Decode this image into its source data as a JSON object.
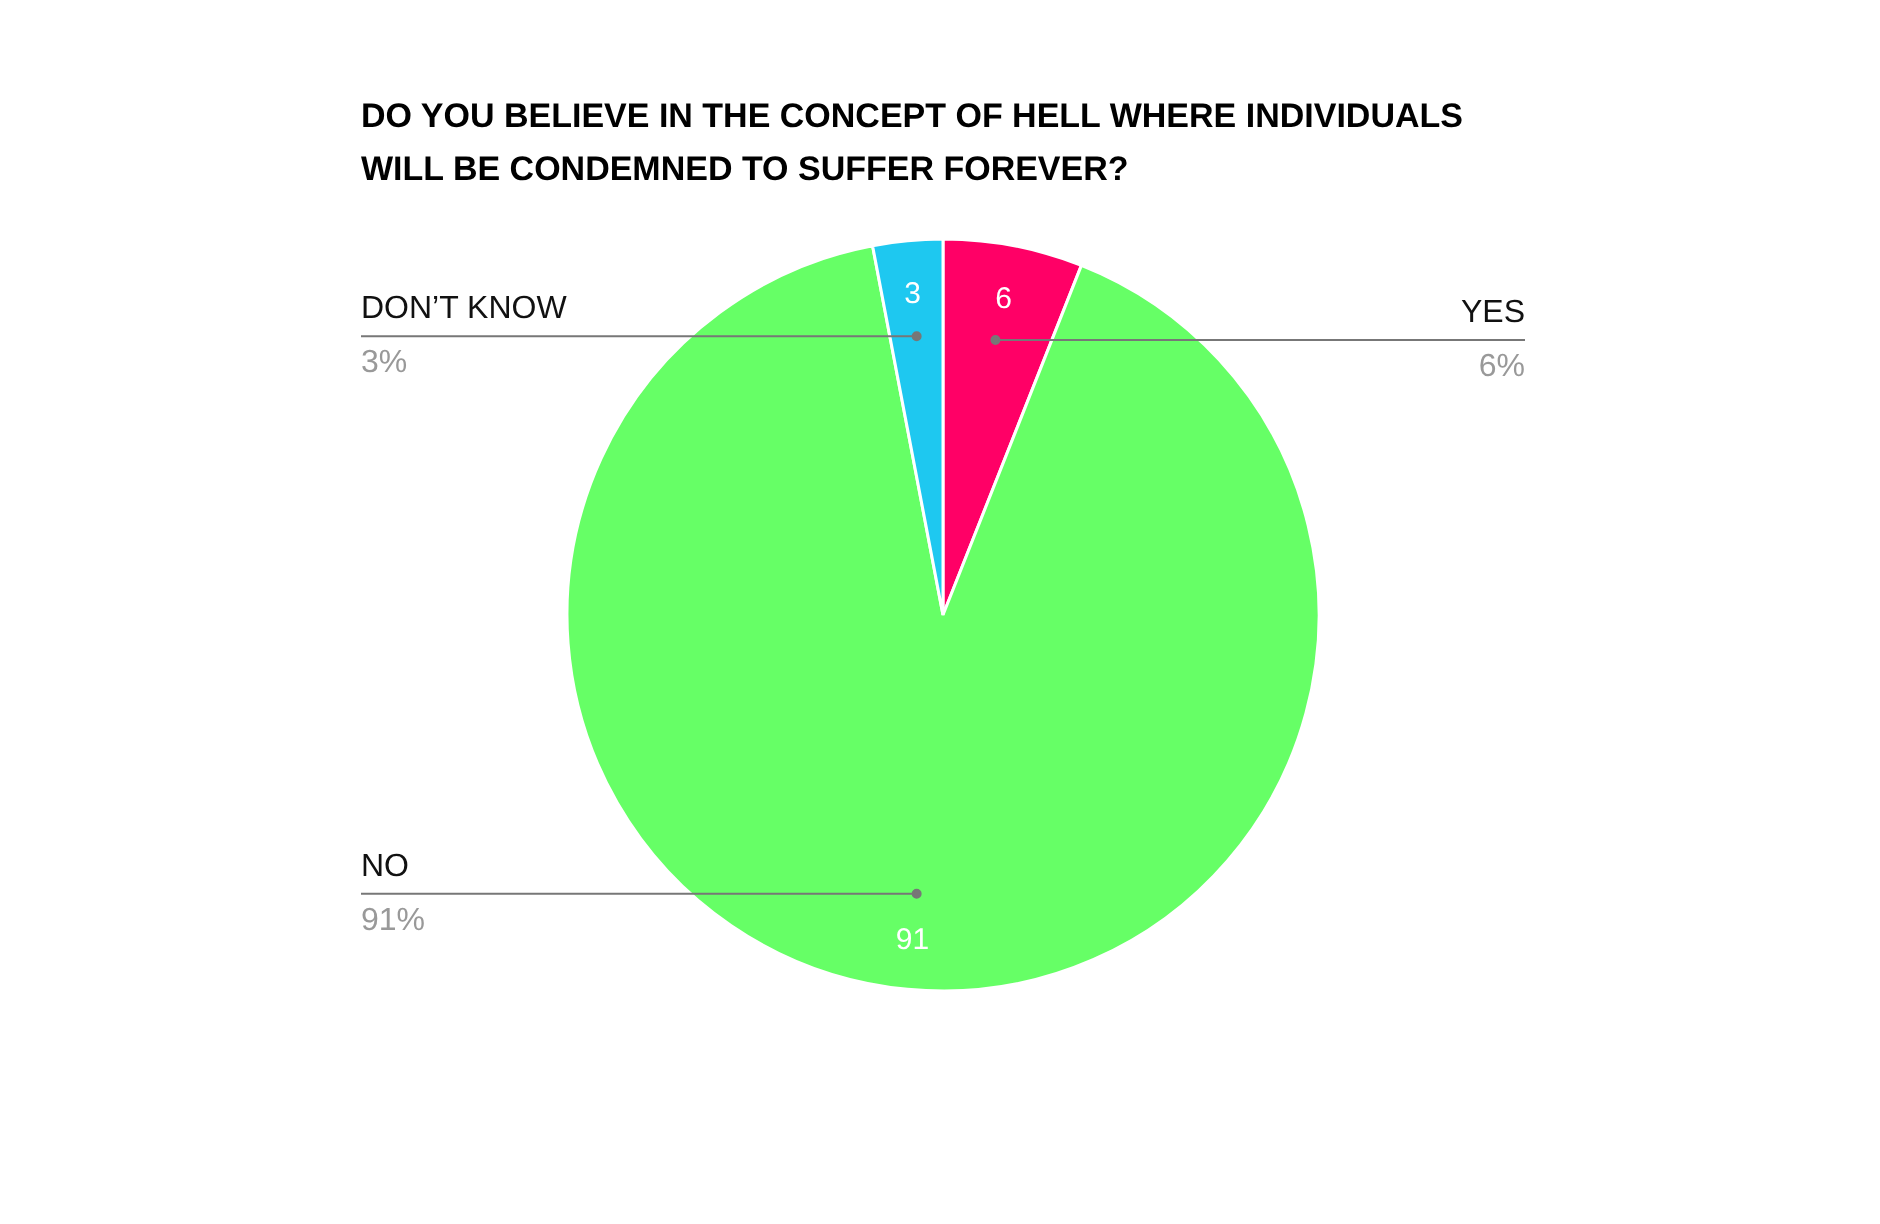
{
  "chart_data": {
    "type": "pie",
    "title": "DO YOU BELIEVE IN THE CONCEPT OF HELL WHERE INDIVIDUALS\nWILL BE CONDEMNED TO SUFFER FOREVER?",
    "categories": [
      "YES",
      "NO",
      "DON’T KNOW"
    ],
    "values": [
      6,
      91,
      3
    ],
    "colors": [
      "#ff0066",
      "#66ff66",
      "#1ec8f0"
    ],
    "value_labels": [
      "6",
      "91",
      "3"
    ],
    "annotations": [
      "6%",
      "91%",
      "3%"
    ]
  }
}
